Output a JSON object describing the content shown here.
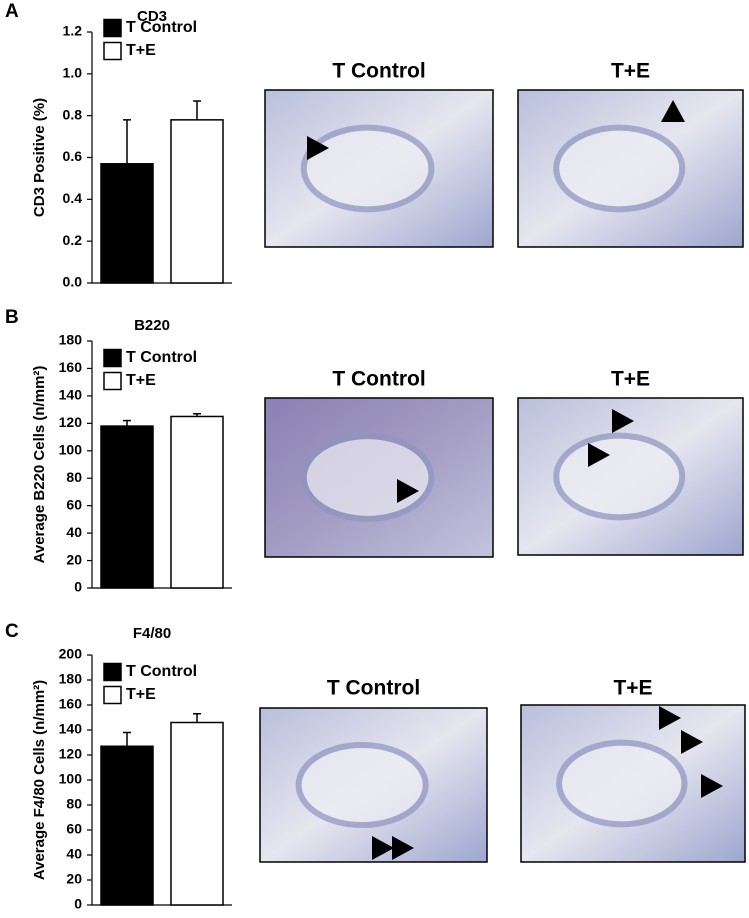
{
  "chart_data": [
    {
      "type": "bar",
      "title": "CD3",
      "ylabel": "CD3 Positive (%)",
      "ylim": [
        0,
        1.2
      ],
      "yticks": [
        {
          "value": 0,
          "label": "0.0"
        },
        0.2,
        0.4,
        0.6,
        0.8,
        {
          "value": 1,
          "label": "1.0"
        },
        1.2
      ],
      "series": [
        {
          "name": "T Control",
          "color": "#000000",
          "values": [
            0.57
          ],
          "errors": [
            0.21
          ]
        },
        {
          "name": "T+E",
          "color": "#ffffff",
          "values": [
            0.78
          ],
          "errors": [
            0.09
          ]
        }
      ]
    },
    {
      "type": "bar",
      "title": "B220",
      "ylabel": "Average  B220 Cells (n/mm²)",
      "ylim": [
        0,
        180
      ],
      "yticks": [
        0,
        20,
        40,
        60,
        80,
        100,
        120,
        140,
        160,
        180
      ],
      "series": [
        {
          "name": "T Control",
          "color": "#000000",
          "values": [
            118
          ],
          "errors": [
            4
          ]
        },
        {
          "name": "T+E",
          "color": "#ffffff",
          "values": [
            125
          ],
          "errors": [
            2
          ]
        }
      ]
    },
    {
      "type": "bar",
      "title": "F4/80",
      "ylabel": "Average F4/80 Cells (n/mm²)",
      "ylim": [
        0,
        200
      ],
      "yticks": [
        0,
        20,
        40,
        60,
        80,
        100,
        120,
        140,
        160,
        180,
        200
      ],
      "series": [
        {
          "name": "T Control",
          "color": "#000000",
          "values": [
            127
          ],
          "errors": [
            11
          ]
        },
        {
          "name": "T+E",
          "color": "#ffffff",
          "values": [
            146
          ],
          "errors": [
            7
          ]
        }
      ]
    }
  ],
  "panels": [
    {
      "letter": "A",
      "image_titles": [
        "T Control",
        "T+E"
      ]
    },
    {
      "letter": "B",
      "image_titles": [
        "T Control",
        "T+E"
      ]
    },
    {
      "letter": "C",
      "image_titles": [
        "T Control",
        "T+E"
      ]
    }
  ]
}
